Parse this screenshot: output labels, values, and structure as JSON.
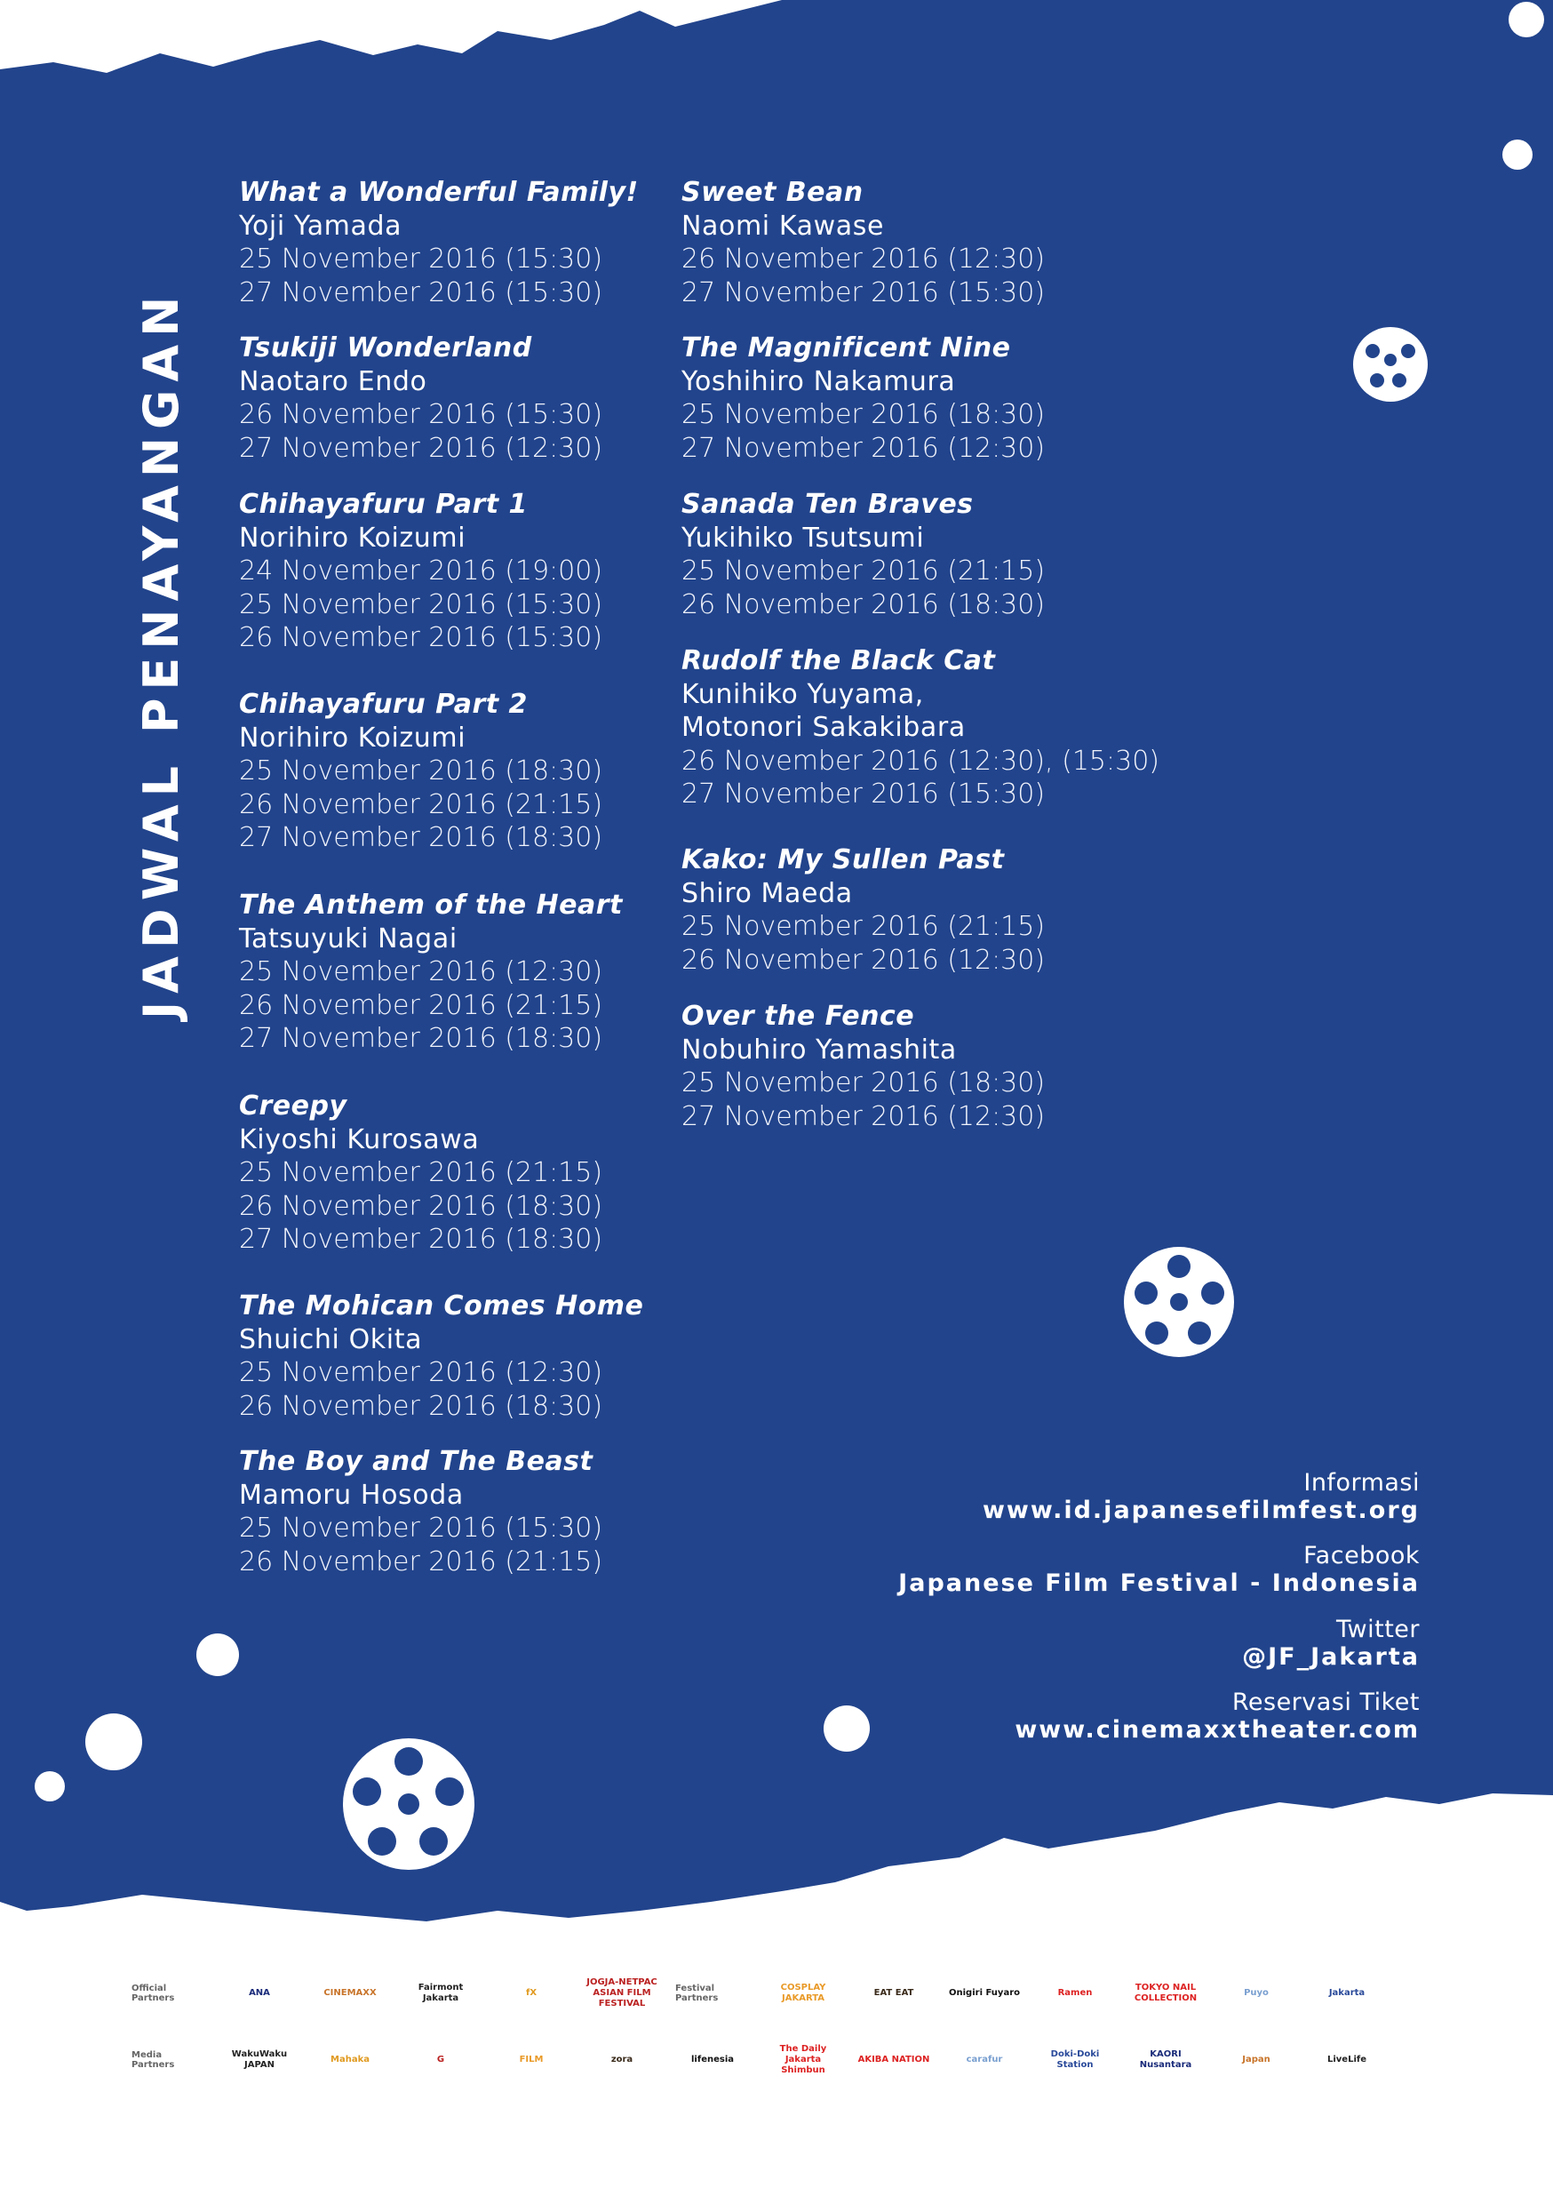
{
  "title": "JADWAL PENAYANGAN",
  "colors": {
    "background_blue": "#22448c",
    "text": "#ffffff"
  },
  "films_left": [
    {
      "title": "What a Wonderful Family!",
      "director": "Yoji Yamada",
      "screenings": [
        "25 November 2016 (15:30)",
        "27 November 2016 (15:30)"
      ]
    },
    {
      "title": "Tsukiji Wonderland",
      "director": "Naotaro Endo",
      "screenings": [
        "26 November 2016 (15:30)",
        "27 November 2016 (12:30)"
      ]
    },
    {
      "title": "Chihayafuru Part 1",
      "director": "Norihiro Koizumi",
      "screenings": [
        "24 November 2016 (19:00)",
        "25 November 2016 (15:30)",
        "26 November 2016 (15:30)"
      ]
    },
    {
      "title": "Chihayafuru Part 2",
      "director": "Norihiro Koizumi",
      "screenings": [
        "25 November 2016 (18:30)",
        "26 November 2016 (21:15)",
        "27 November 2016 (18:30)"
      ]
    },
    {
      "title": "The Anthem of the Heart",
      "director": "Tatsuyuki Nagai",
      "screenings": [
        "25 November 2016 (12:30)",
        "26 November 2016 (21:15)",
        "27 November 2016 (18:30)"
      ]
    },
    {
      "title": "Creepy",
      "director": "Kiyoshi Kurosawa",
      "screenings": [
        "25 November 2016 (21:15)",
        "26 November 2016 (18:30)",
        "27 November 2016 (18:30)"
      ]
    },
    {
      "title": "The Mohican Comes Home",
      "director": "Shuichi Okita",
      "screenings": [
        "25 November 2016 (12:30)",
        "26 November 2016 (18:30)"
      ]
    },
    {
      "title": "The Boy and The Beast",
      "director": "Mamoru Hosoda",
      "screenings": [
        "25 November 2016 (15:30)",
        "26 November 2016 (21:15)"
      ]
    }
  ],
  "films_right": [
    {
      "title": "Sweet Bean",
      "director": "Naomi Kawase",
      "screenings": [
        "26 November 2016 (12:30)",
        "27 November 2016 (15:30)"
      ]
    },
    {
      "title": "The Magnificent Nine",
      "director": "Yoshihiro Nakamura",
      "screenings": [
        "25 November 2016 (18:30)",
        "27 November 2016 (12:30)"
      ]
    },
    {
      "title": "Sanada Ten Braves",
      "director": "Yukihiko Tsutsumi",
      "screenings": [
        "25 November 2016 (21:15)",
        "26 November 2016 (18:30)"
      ]
    },
    {
      "title": "Rudolf the Black Cat",
      "director": "Kunihiko Yuyama,",
      "director2": "Motonori Sakakibara",
      "screenings": [
        "26 November 2016 (12:30), (15:30)",
        "27 November 2016 (15:30)"
      ]
    },
    {
      "title": "Kako: My Sullen Past",
      "director": "Shiro Maeda",
      "screenings": [
        "25 November 2016 (21:15)",
        "26 November 2016 (12:30)"
      ]
    },
    {
      "title": "Over the Fence",
      "director": "Nobuhiro Yamashita",
      "screenings": [
        "25 November 2016 (18:30)",
        "27 November 2016 (12:30)"
      ]
    }
  ],
  "info": [
    {
      "label": "Informasi",
      "value": "www.id.japanesefilmfest.org"
    },
    {
      "label": "Facebook",
      "value": "Japanese Film Festival - Indonesia"
    },
    {
      "label": "Twitter",
      "value": "@JF_Jakarta"
    },
    {
      "label": "Reservasi Tiket",
      "value": "www.cinemaxxtheater.com"
    }
  ],
  "partners": {
    "official_label": "Official Partners",
    "official": [
      "ANA",
      "CINEMAXX",
      "Fairmont Jakarta",
      "fX",
      "JOGJA-NETPAC ASIAN FILM FESTIVAL"
    ],
    "festival_label": "Festival Partners",
    "festival": [
      "COSPLAY JAKARTA",
      "EAT EAT",
      "Onigiri Fuyaro",
      "Ramen",
      "TOKYO NAIL COLLECTION",
      "Puyo",
      "Jakarta"
    ],
    "media_label": "Media Partners",
    "media": [
      "WakuWaku JAPAN",
      "Mahaka",
      "G",
      "FILM",
      "zora",
      "lifenesia",
      "The Daily Jakarta Shimbun",
      "AKIBA NATION",
      "carafur",
      "Doki-Doki Station",
      "KAORI Nusantara",
      "Japan",
      "LiveLife"
    ]
  }
}
